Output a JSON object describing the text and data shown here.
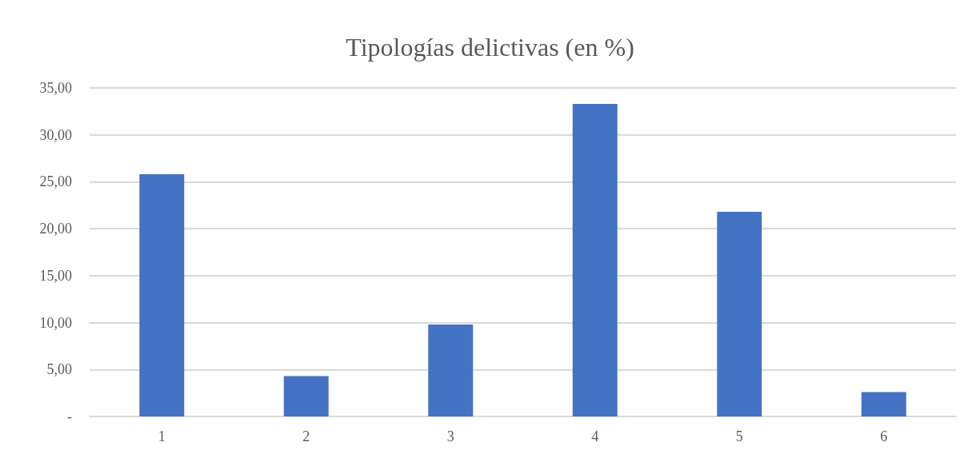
{
  "chart_data": {
    "type": "bar",
    "title": "Tipologías delictivas (en %)",
    "categories": [
      "1",
      "2",
      "3",
      "4",
      "5",
      "6"
    ],
    "values": [
      25.8,
      4.3,
      9.8,
      33.3,
      21.8,
      2.6
    ],
    "color": "#4472c4",
    "ylim": [
      0,
      35
    ],
    "yticks": [
      {
        "value": 0,
        "label": "-"
      },
      {
        "value": 5,
        "label": "5,00"
      },
      {
        "value": 10,
        "label": "10,00"
      },
      {
        "value": 15,
        "label": "15,00"
      },
      {
        "value": 20,
        "label": "20,00"
      },
      {
        "value": 25,
        "label": "25,00"
      },
      {
        "value": 30,
        "label": "30,00"
      },
      {
        "value": 35,
        "label": "35,00"
      }
    ],
    "grid": true
  }
}
